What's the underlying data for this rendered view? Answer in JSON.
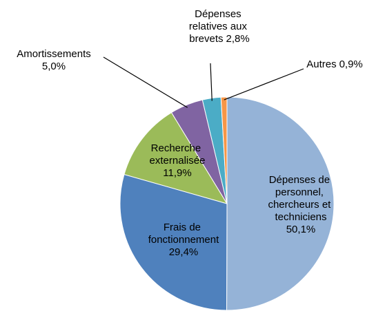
{
  "chart_data": {
    "type": "pie",
    "categories": [
      "Dépenses de personnel, chercheurs et techniciens",
      "Frais de fonctionnement",
      "Recherche externalisée",
      "Amortissements",
      "Dépenses relatives aux brevets",
      "Autres"
    ],
    "values": [
      50.1,
      29.4,
      11.9,
      5.0,
      2.8,
      0.9
    ],
    "value_labels": [
      "50,1%",
      "29,4%",
      "11,9%",
      "5,0%",
      "2,8%",
      "0,9%"
    ],
    "colors": [
      "#95b3d7",
      "#4f81bd",
      "#9bbb59",
      "#8064a2",
      "#4bacc6",
      "#f79646"
    ]
  }
}
